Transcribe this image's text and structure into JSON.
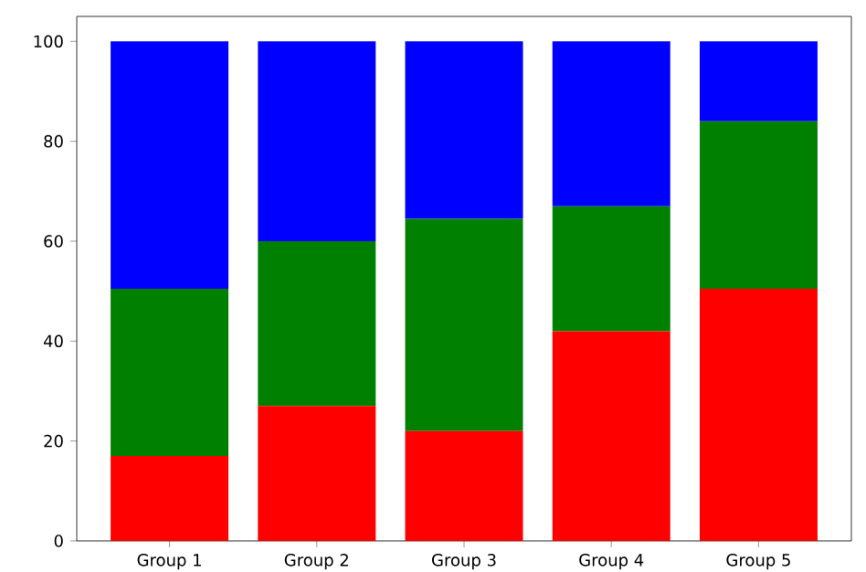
{
  "chart_data": {
    "type": "bar",
    "stacked": true,
    "categories": [
      "Group 1",
      "Group 2",
      "Group 3",
      "Group 4",
      "Group 5"
    ],
    "series": [
      {
        "color": "#ff0000",
        "values": [
          17,
          27,
          22,
          42,
          50.5
        ]
      },
      {
        "color": "#008000",
        "values": [
          33.5,
          33,
          42.5,
          25,
          33.5
        ]
      },
      {
        "color": "#0000ff",
        "values": [
          49.5,
          40,
          35.5,
          33,
          16
        ]
      }
    ],
    "ylim": [
      0,
      105
    ],
    "yticks": [
      0,
      20,
      40,
      60,
      80,
      100
    ]
  }
}
